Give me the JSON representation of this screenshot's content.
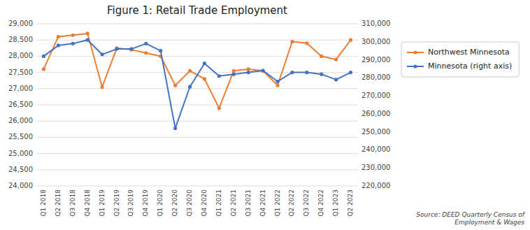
{
  "chart_data": {
    "type": "line",
    "title": "Figure 1:  Retail Trade Employment",
    "categories": [
      "Q1 2018",
      "Q2 2018",
      "Q3 2018",
      "Q4 2018",
      "Q1 2019",
      "Q2 2019",
      "Q3 2019",
      "Q4 2019",
      "Q1 2020",
      "Q2 2020",
      "Q3 2020",
      "Q4 2020",
      "Q1 2021",
      "Q2 2021",
      "Q3 2021",
      "Q4 2021",
      "Q1 2022",
      "Q2 2022",
      "Q3 2022",
      "Q4 2022",
      "Q1 2023",
      "Q2 2023"
    ],
    "series": [
      {
        "name": "Northwest Minnesota",
        "color": "#ED7D31",
        "marker": "circle",
        "values": [
          27600,
          28600,
          28650,
          28700,
          27050,
          28250,
          28200,
          28100,
          28000,
          27100,
          27550,
          27300,
          26400,
          27550,
          27600,
          27550,
          27100,
          28450,
          28400,
          28000,
          27900,
          28500
        ]
      },
      {
        "name": "Minnesota (right axis)",
        "color": "#4472C4",
        "marker": "circle",
        "axis": "y2",
        "values": [
          292000,
          298000,
          299000,
          301000,
          293000,
          296000,
          296000,
          299000,
          295000,
          252000,
          275000,
          288000,
          281000,
          282000,
          283000,
          284000,
          278000,
          283000,
          283000,
          282000,
          279000,
          283000
        ]
      }
    ],
    "ylim": [
      24000,
      29000
    ],
    "yticks": [
      {
        "value": 24000,
        "label": "24,000"
      },
      {
        "value": 24500,
        "label": "24,500"
      },
      {
        "value": 25000,
        "label": "25,000"
      },
      {
        "value": 25500,
        "label": "25,500"
      },
      {
        "value": 26000,
        "label": "26,000"
      },
      {
        "value": 26500,
        "label": "26,500"
      },
      {
        "value": 27000,
        "label": "27,000"
      },
      {
        "value": 27500,
        "label": "27,500"
      },
      {
        "value": 28000,
        "label": "28,000"
      },
      {
        "value": 28500,
        "label": "28,500"
      },
      {
        "value": 29000,
        "label": "29,000"
      }
    ],
    "y2lim": [
      220000,
      310000
    ],
    "y2ticks": [
      {
        "value": 220000,
        "label": "220,000"
      },
      {
        "value": 230000,
        "label": "230,000"
      },
      {
        "value": 240000,
        "label": "240,000"
      },
      {
        "value": 250000,
        "label": "250,000"
      },
      {
        "value": 260000,
        "label": "260,000"
      },
      {
        "value": 270000,
        "label": "270,000"
      },
      {
        "value": 280000,
        "label": "280,000"
      },
      {
        "value": 290000,
        "label": "290,000"
      },
      {
        "value": 300000,
        "label": "300,000"
      },
      {
        "value": 310000,
        "label": "310,000"
      }
    ],
    "grid": true,
    "legend": "right",
    "source": "Source: DEED Quarterly Census of\nEmployment & Wages"
  }
}
